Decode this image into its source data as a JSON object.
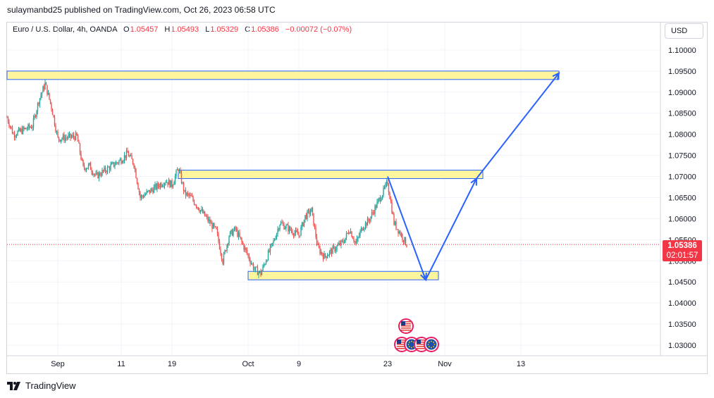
{
  "header": {
    "publisher_line": "sulaymanbd25 published on TradingView.com, Oct 26, 2023 06:58 UTC"
  },
  "legend": {
    "symbol": "Euro / U.S. Dollar, 4h, OANDA",
    "open_label": "O",
    "open": "1.05457",
    "high_label": "H",
    "high": "1.05493",
    "low_label": "L",
    "low": "1.05329",
    "close_label": "C",
    "close": "1.05386",
    "change": "−0.00072 (−0.07%)"
  },
  "currency_button": "USD",
  "last_price": {
    "value": "1.05386",
    "countdown": "02:01:57"
  },
  "footer": {
    "brand": "TradingView"
  },
  "colors": {
    "up": "#26a69a",
    "down": "#ef5350",
    "zone_fill": "#fff59d",
    "zone_border": "#2962ff",
    "arrow": "#2962ff",
    "last_price": "#f23645"
  },
  "chart_data": {
    "type": "candlestick",
    "title": "",
    "xlabel": "",
    "ylabel": "",
    "ylim": [
      1.0275,
      1.1065
    ],
    "y_ticks": [
      "1.10000",
      "1.09500",
      "1.09000",
      "1.08500",
      "1.08000",
      "1.07500",
      "1.07000",
      "1.06500",
      "1.06000",
      "1.05500",
      "1.05000",
      "1.04500",
      "1.04000",
      "1.03500",
      "1.03000"
    ],
    "x_ticks": [
      "Sep",
      "11",
      "19",
      "Oct",
      "9",
      "23",
      "Nov",
      "13"
    ],
    "grid": true,
    "close_path": [
      [
        "Aug 24",
        1.084
      ],
      [
        "Aug 25",
        1.08
      ],
      [
        "Aug 28",
        1.082
      ],
      [
        "Aug 29",
        1.088
      ],
      [
        "Aug 30",
        1.092
      ],
      [
        "Aug 31",
        1.0865
      ],
      [
        "Sep 1",
        1.079
      ],
      [
        "Sep 4",
        1.0795
      ],
      [
        "Sep 5",
        1.072
      ],
      [
        "Sep 6",
        1.0725
      ],
      [
        "Sep 7",
        1.07
      ],
      [
        "Sep 8",
        1.071
      ],
      [
        "Sep 11",
        1.074
      ],
      [
        "Sep 12",
        1.0755
      ],
      [
        "Sep 13",
        1.073
      ],
      [
        "Sep 14",
        1.065
      ],
      [
        "Sep 15",
        1.066
      ],
      [
        "Sep 18",
        1.069
      ],
      [
        "Sep 19",
        1.068
      ],
      [
        "Sep 20",
        1.072
      ],
      [
        "Sep 21",
        1.066
      ],
      [
        "Sep 22",
        1.065
      ],
      [
        "Sep 25",
        1.059
      ],
      [
        "Sep 26",
        1.057
      ],
      [
        "Sep 27",
        1.05
      ],
      [
        "Sep 28",
        1.056
      ],
      [
        "Sep 29",
        1.0575
      ],
      [
        "Oct 2",
        1.048
      ],
      [
        "Oct 3",
        1.047
      ],
      [
        "Oct 4",
        1.051
      ],
      [
        "Oct 5",
        1.0545
      ],
      [
        "Oct 6",
        1.059
      ],
      [
        "Oct 9",
        1.056
      ],
      [
        "Oct 10",
        1.0605
      ],
      [
        "Oct 11",
        1.062
      ],
      [
        "Oct 12",
        1.053
      ],
      [
        "Oct 13",
        1.051
      ],
      [
        "Oct 16",
        1.0545
      ],
      [
        "Oct 17",
        1.0575
      ],
      [
        "Oct 18",
        1.054
      ],
      [
        "Oct 19",
        1.058
      ],
      [
        "Oct 20",
        1.0595
      ],
      [
        "Oct 23",
        1.0685
      ],
      [
        "Oct 24",
        1.059
      ],
      [
        "Oct 25",
        1.0565
      ],
      [
        "Oct 26",
        1.0539
      ]
    ],
    "zones": [
      {
        "from": "Aug 24",
        "to": "Nov 19",
        "low": 1.093,
        "high": 1.095
      },
      {
        "from": "Sep 20",
        "to": "Nov 7",
        "low": 1.0695,
        "high": 1.0715
      },
      {
        "from": "Oct 1",
        "to": "Oct 31",
        "low": 1.0455,
        "high": 1.0475
      }
    ],
    "projection_path": [
      [
        "Oct 23",
        1.07
      ],
      [
        "Oct 29",
        1.0455
      ],
      [
        "Nov 6",
        1.0695
      ],
      [
        "Nov 19",
        1.0945
      ]
    ],
    "last_price": 1.05386,
    "events": [
      {
        "date": "Oct 27",
        "type": "us-flag",
        "count": 1
      },
      {
        "date": "Oct 27",
        "type": "eu-us-flag",
        "count": 4
      }
    ]
  }
}
